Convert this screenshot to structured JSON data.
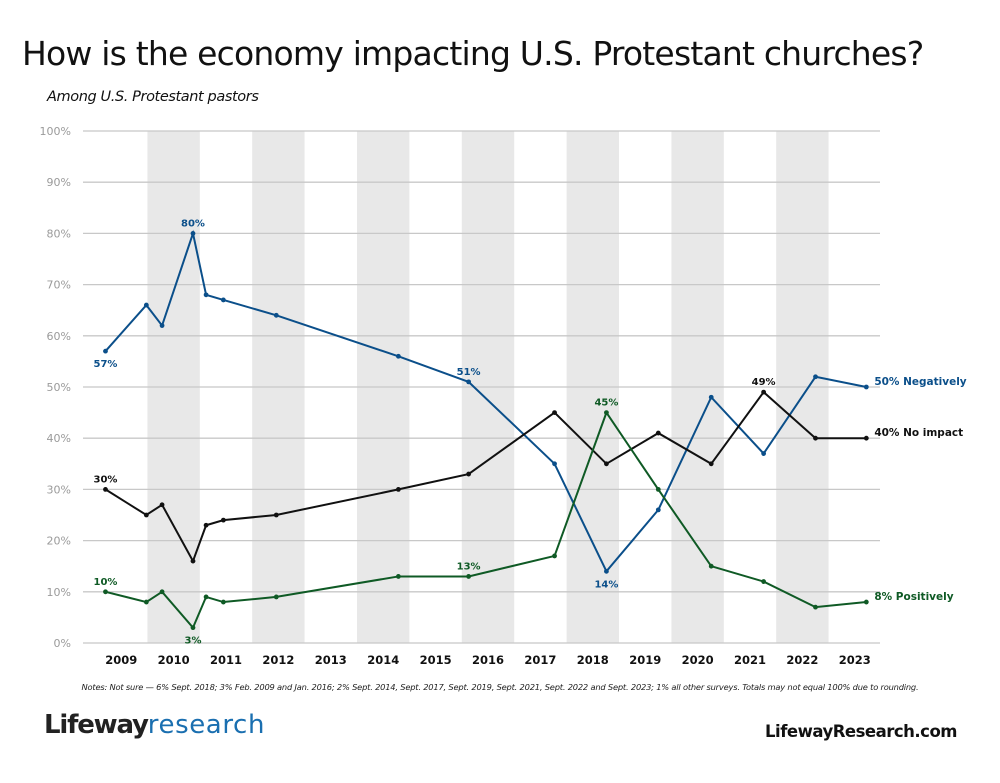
{
  "header": {
    "title": "How is the economy impacting U.S. Protestant churches?",
    "subtitle": "Among U.S. Protestant pastors"
  },
  "footer": {
    "notes": "Notes: Not sure — 6% Sept. 2018; 3% Feb. 2009 and Jan. 2016; 2% Sept. 2014, Sept. 2017, Sept. 2019, Sept. 2021, Sept. 2022 and Sept. 2023; 1% all other surveys. Totals may not equal 100% due to rounding.",
    "logo_part1": "Lifeway",
    "logo_part2": "research",
    "website": "LifewayResearch.com"
  },
  "chart_data": {
    "type": "line",
    "title": "How is the economy impacting U.S. Protestant churches?",
    "subtitle": "Among U.S. Protestant pastors",
    "xlabel": "",
    "ylabel": "",
    "ylim": [
      0,
      100
    ],
    "yticks": [
      0,
      10,
      20,
      30,
      40,
      50,
      60,
      70,
      80,
      90,
      100
    ],
    "ytick_labels": [
      "0%",
      "10%",
      "20%",
      "30%",
      "40%",
      "50%",
      "60%",
      "70%",
      "80%",
      "90%",
      "100%"
    ],
    "xlim": [
      2009,
      2024
    ],
    "xtick_labels": [
      "2009",
      "2010",
      "2011",
      "2012",
      "2013",
      "2014",
      "2015",
      "2016",
      "2017",
      "2018",
      "2019",
      "2020",
      "2021",
      "2022",
      "2023"
    ],
    "grid": "horizontal",
    "alternating_year_bands": [
      "2010",
      "2012",
      "2014",
      "2016",
      "2018",
      "2020",
      "2022"
    ],
    "band_color": "#e8e8e8",
    "legend": "direct labels at line ends (right)",
    "x": [
      2009.2,
      2009.98,
      2010.28,
      2010.87,
      2011.12,
      2011.45,
      2012.46,
      2014.79,
      2016.13,
      2017.77,
      2018.76,
      2019.75,
      2020.76,
      2021.76,
      2022.75,
      2023.72
    ],
    "series": [
      {
        "name": "Negatively",
        "end_label": "50% Negatively",
        "color": "#0b4f8a",
        "values": [
          57,
          66,
          62,
          80,
          68,
          67,
          64,
          56,
          51,
          35,
          14,
          26,
          48,
          37,
          52,
          50
        ],
        "annotations": [
          {
            "index": 0,
            "text": "57%",
            "pos": "below"
          },
          {
            "index": 3,
            "text": "80%",
            "pos": "above"
          },
          {
            "index": 8,
            "text": "51%",
            "pos": "above"
          },
          {
            "index": 10,
            "text": "14%",
            "pos": "below"
          }
        ]
      },
      {
        "name": "No impact",
        "end_label": "40% No impact",
        "color": "#111111",
        "values": [
          30,
          25,
          27,
          16,
          23,
          24,
          25,
          30,
          33,
          45,
          35,
          41,
          35,
          49,
          40,
          40
        ],
        "annotations": [
          {
            "index": 0,
            "text": "30%",
            "pos": "above"
          },
          {
            "index": 13,
            "text": "49%",
            "pos": "above"
          }
        ]
      },
      {
        "name": "Positively",
        "end_label": "8% Positively",
        "color": "#0f5a25",
        "values": [
          10,
          8,
          10,
          3,
          9,
          8,
          9,
          13,
          13,
          17,
          45,
          30,
          15,
          12,
          7,
          8
        ],
        "annotations": [
          {
            "index": 0,
            "text": "10%",
            "pos": "above"
          },
          {
            "index": 3,
            "text": "3%",
            "pos": "below"
          },
          {
            "index": 8,
            "text": "13%",
            "pos": "above"
          },
          {
            "index": 10,
            "text": "45%",
            "pos": "above"
          }
        ]
      }
    ]
  }
}
